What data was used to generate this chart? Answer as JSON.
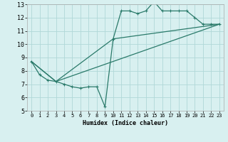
{
  "xlabel": "Humidex (Indice chaleur)",
  "bg_color": "#d8f0f0",
  "grid_color": "#b0d8d8",
  "line_color": "#2a7a6a",
  "xlim": [
    -0.5,
    23.5
  ],
  "ylim": [
    5,
    13
  ],
  "yticks": [
    5,
    6,
    7,
    8,
    9,
    10,
    11,
    12,
    13
  ],
  "xticks": [
    0,
    1,
    2,
    3,
    4,
    5,
    6,
    7,
    8,
    9,
    10,
    11,
    12,
    13,
    14,
    15,
    16,
    17,
    18,
    19,
    20,
    21,
    22,
    23
  ],
  "line1_x": [
    0,
    1,
    2,
    3,
    4,
    5,
    6,
    7,
    8,
    9,
    10,
    11,
    12,
    13,
    14,
    15,
    16,
    17,
    18,
    19,
    20,
    21,
    22,
    23
  ],
  "line1_y": [
    8.7,
    7.7,
    7.3,
    7.2,
    7.0,
    6.8,
    6.7,
    6.8,
    6.8,
    5.3,
    10.4,
    12.5,
    12.5,
    12.3,
    12.5,
    13.2,
    12.5,
    12.5,
    12.5,
    12.5,
    12.0,
    11.5,
    11.5,
    11.5
  ],
  "line2_x": [
    0,
    3,
    10,
    23
  ],
  "line2_y": [
    8.7,
    7.2,
    10.4,
    11.5
  ],
  "line3_x": [
    0,
    3,
    23
  ],
  "line3_y": [
    8.7,
    7.2,
    11.5
  ]
}
